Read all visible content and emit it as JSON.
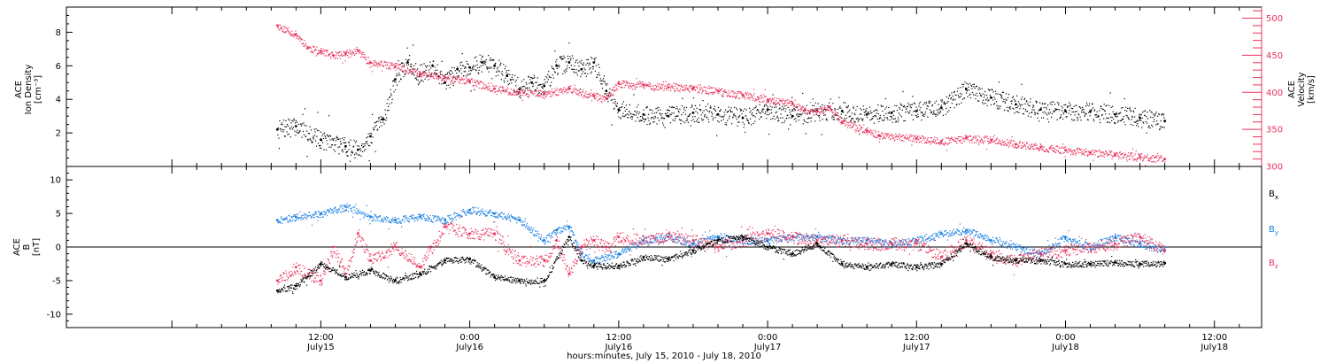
{
  "colors": {
    "bg": "#ffffff",
    "axis": "#000000",
    "density": "#000000",
    "velocity": "#e8335d",
    "bx": "#000000",
    "by": "#1a7fe0",
    "bz": "#e8335d"
  },
  "figure": {
    "xlabel": "hours:minutes, July 15, 2010 - July 18, 2010",
    "time_range_hours": [
      -8.5,
      87.8
    ]
  },
  "x_ticks": [
    {
      "hours": 12,
      "time": "12:00",
      "date": "July15"
    },
    {
      "hours": 24,
      "time": "0:00",
      "date": "July16"
    },
    {
      "hours": 36,
      "time": "12:00",
      "date": "July16"
    },
    {
      "hours": 48,
      "time": "0:00",
      "date": "July17"
    },
    {
      "hours": 60,
      "time": "12:00",
      "date": "July17"
    },
    {
      "hours": 72,
      "time": "0:00",
      "date": "July18"
    },
    {
      "hours": 84,
      "time": "12:00",
      "date": "July18"
    }
  ],
  "chart_data": [
    {
      "type": "scatter",
      "panel": "top",
      "ylabel": [
        "ACE",
        "Ion Density",
        "[cm⁻³]"
      ],
      "ylim": [
        0,
        9.5
      ],
      "y_ticks": [
        2,
        4,
        6,
        8
      ],
      "y2label": [
        "ACE",
        "Velocity",
        "[km/s]"
      ],
      "y2lim": [
        300,
        515
      ],
      "y2_ticks": [
        300,
        350,
        400,
        450,
        500
      ],
      "series": [
        {
          "name": "",
          "axis": "left",
          "color": "#000000",
          "x_hours": [
            8.5,
            10,
            12,
            14,
            15,
            16,
            17,
            18,
            19,
            20,
            21,
            22,
            23,
            24,
            25,
            26,
            27,
            28,
            29,
            30,
            31,
            32,
            33,
            34,
            35,
            36,
            38,
            40,
            42,
            44,
            46,
            48,
            50,
            52,
            54,
            56,
            58,
            60,
            62,
            64,
            66,
            68,
            70,
            72,
            74,
            76,
            78,
            80
          ],
          "y": [
            2.2,
            2.4,
            1.6,
            1.2,
            1.0,
            1.8,
            2.8,
            5.2,
            6.2,
            5.5,
            6.0,
            5.0,
            5.8,
            5.9,
            6.2,
            6.0,
            5.4,
            4.6,
            5.0,
            4.8,
            6.0,
            6.2,
            5.8,
            6.2,
            4.5,
            3.4,
            3.1,
            3.0,
            3.2,
            3.1,
            2.9,
            3.4,
            3.0,
            3.3,
            3.3,
            3.1,
            3.2,
            3.3,
            3.5,
            4.6,
            4.1,
            3.7,
            3.4,
            3.3,
            3.3,
            3.1,
            2.9,
            2.7
          ]
        },
        {
          "name": "",
          "axis": "right",
          "color": "#e8335d",
          "x_hours": [
            8.5,
            10,
            11,
            12,
            13,
            14,
            15,
            16,
            18,
            20,
            22,
            24,
            26,
            28,
            30,
            32,
            34,
            35,
            36,
            38,
            40,
            42,
            44,
            46,
            48,
            50,
            51,
            52,
            53,
            54,
            56,
            57,
            60,
            62,
            64,
            66,
            68,
            70,
            72,
            74,
            76,
            78,
            80
          ],
          "y": [
            490,
            478,
            460,
            455,
            450,
            452,
            456,
            440,
            435,
            425,
            420,
            415,
            405,
            400,
            398,
            405,
            395,
            392,
            412,
            410,
            407,
            405,
            402,
            396,
            390,
            385,
            376,
            374,
            380,
            360,
            348,
            342,
            338,
            334,
            338,
            336,
            330,
            326,
            322,
            319,
            316,
            313,
            310
          ]
        }
      ]
    },
    {
      "type": "scatter",
      "panel": "bottom",
      "ylabel": [
        "ACE",
        "B",
        "[nT]"
      ],
      "ylim": [
        -12,
        12
      ],
      "y_ticks": [
        -10,
        -5,
        0,
        5,
        10
      ],
      "legend": [
        "Bx",
        "By",
        "Bz"
      ],
      "series": [
        {
          "name": "Bx",
          "color": "#000000",
          "x_hours": [
            8.5,
            10,
            12,
            14,
            16,
            18,
            20,
            22,
            24,
            26,
            28,
            30,
            32,
            33,
            34,
            36,
            38,
            40,
            42,
            44,
            46,
            48,
            50,
            52,
            54,
            56,
            58,
            60,
            62,
            64,
            66,
            68,
            70,
            72,
            74,
            76,
            78,
            80
          ],
          "y": [
            -6.5,
            -5.8,
            -2.5,
            -4.5,
            -3.5,
            -5.0,
            -4.0,
            -2.0,
            -1.8,
            -4.5,
            -5.0,
            -5.0,
            1.5,
            -2.0,
            -2.8,
            -2.8,
            -1.5,
            -1.8,
            -0.5,
            1.0,
            1.5,
            0.0,
            -1.0,
            0.5,
            -2.5,
            -3.0,
            -2.5,
            -3.0,
            -2.5,
            0.5,
            -1.5,
            -2.0,
            -2.0,
            -2.5,
            -2.5,
            -2.3,
            -2.5,
            -2.4
          ]
        },
        {
          "name": "By",
          "color": "#1a7fe0",
          "x_hours": [
            8.5,
            10,
            12,
            14,
            16,
            18,
            20,
            22,
            24,
            26,
            28,
            30,
            31,
            32,
            33,
            34,
            36,
            38,
            40,
            42,
            44,
            46,
            48,
            50,
            52,
            54,
            56,
            58,
            60,
            62,
            64,
            66,
            68,
            70,
            72,
            74,
            76,
            78,
            80
          ],
          "y": [
            4.0,
            4.5,
            5.0,
            6.0,
            4.5,
            4.0,
            4.5,
            4.0,
            5.5,
            5.0,
            4.0,
            1.0,
            2.5,
            3.0,
            -1.0,
            -2.0,
            -1.0,
            1.0,
            1.5,
            0.5,
            1.5,
            1.0,
            1.0,
            1.5,
            1.5,
            1.0,
            1.0,
            0.5,
            1.0,
            2.0,
            2.5,
            1.0,
            0.0,
            -1.0,
            1.5,
            0.0,
            1.5,
            0.5,
            -0.5
          ]
        },
        {
          "name": "Bz",
          "color": "#e8335d",
          "x_hours": [
            8.5,
            10,
            11,
            12,
            13,
            14,
            15,
            16,
            18,
            20,
            22,
            24,
            26,
            28,
            30,
            31,
            32,
            33,
            34,
            35,
            36,
            38,
            40,
            42,
            44,
            46,
            48,
            50,
            52,
            54,
            56,
            58,
            60,
            62,
            64,
            66,
            68,
            70,
            72,
            74,
            76,
            78,
            80
          ],
          "y": [
            -5.0,
            -3.0,
            -4.0,
            -5.0,
            0.0,
            -4.0,
            2.0,
            -2.0,
            0.0,
            -3.0,
            3.0,
            2.0,
            2.0,
            -2.0,
            -2.0,
            1.0,
            -4.0,
            0.0,
            1.0,
            0.0,
            1.5,
            1.0,
            1.5,
            1.0,
            0.0,
            1.0,
            2.0,
            1.5,
            1.0,
            1.0,
            0.5,
            0.5,
            0.5,
            -1.5,
            1.0,
            -1.0,
            -2.0,
            -1.0,
            -0.5,
            0.0,
            0.5,
            1.5,
            -0.5
          ]
        }
      ]
    }
  ]
}
